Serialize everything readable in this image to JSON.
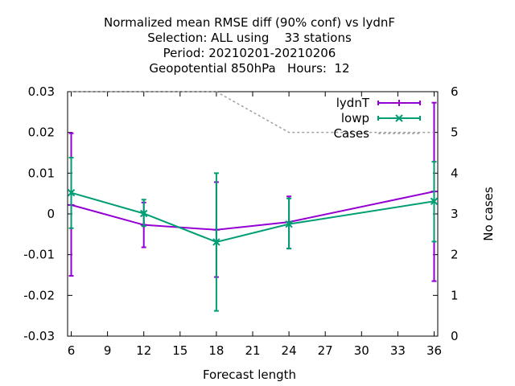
{
  "chart_data": {
    "type": "line",
    "title_lines": [
      "Normalized mean RMSE diff (90% conf) vs lydnF",
      "Selection: ALL using    33 stations",
      "Period: 20210201-20210206",
      "Geopotential 850hPa   Hours:  12"
    ],
    "xlabel": "Forecast length",
    "ylabel": "",
    "y2label": "No cases",
    "xlim": [
      5.7,
      36.3
    ],
    "ylim": [
      -0.03,
      0.03
    ],
    "y2lim": [
      0,
      6
    ],
    "xticks": [
      6,
      9,
      12,
      15,
      18,
      21,
      24,
      27,
      30,
      33,
      36
    ],
    "yticks": [
      -0.03,
      -0.02,
      -0.01,
      0,
      0.01,
      0.02,
      0.03
    ],
    "ytick_labels": [
      "-0.03",
      "-0.02",
      "-0.01",
      "0",
      "0.01",
      "0.02",
      "0.03"
    ],
    "y2ticks": [
      0,
      1,
      2,
      3,
      4,
      5,
      6
    ],
    "legend_position": "top-right",
    "series": [
      {
        "name": "lydnT",
        "color": "#9400d3",
        "marker": "plus",
        "x": [
          6,
          12,
          18,
          24,
          36
        ],
        "y": [
          0.0022,
          -0.0027,
          -0.0039,
          -0.002,
          0.0055
        ],
        "err_low": [
          -0.0152,
          -0.0082,
          -0.0155,
          -0.0085,
          -0.0165
        ],
        "err_high": [
          0.0198,
          0.0028,
          0.0078,
          0.0043,
          0.0273
        ]
      },
      {
        "name": "lowp",
        "color": "#009e73",
        "marker": "x",
        "x": [
          6,
          12,
          18,
          24,
          36
        ],
        "y": [
          0.0052,
          0.0001,
          -0.0069,
          -0.0025,
          0.0031
        ],
        "err_low": [
          -0.0035,
          -0.003,
          -0.0238,
          -0.0085,
          -0.0068
        ],
        "err_high": [
          0.0138,
          0.0035,
          0.01,
          0.0038,
          0.0128
        ]
      },
      {
        "name": "Cases",
        "color": "#a0a0a0",
        "style": "dashed",
        "axis": "y2",
        "x": [
          6,
          12,
          18,
          24,
          36
        ],
        "y": [
          6,
          6,
          6,
          5,
          5
        ]
      }
    ]
  }
}
